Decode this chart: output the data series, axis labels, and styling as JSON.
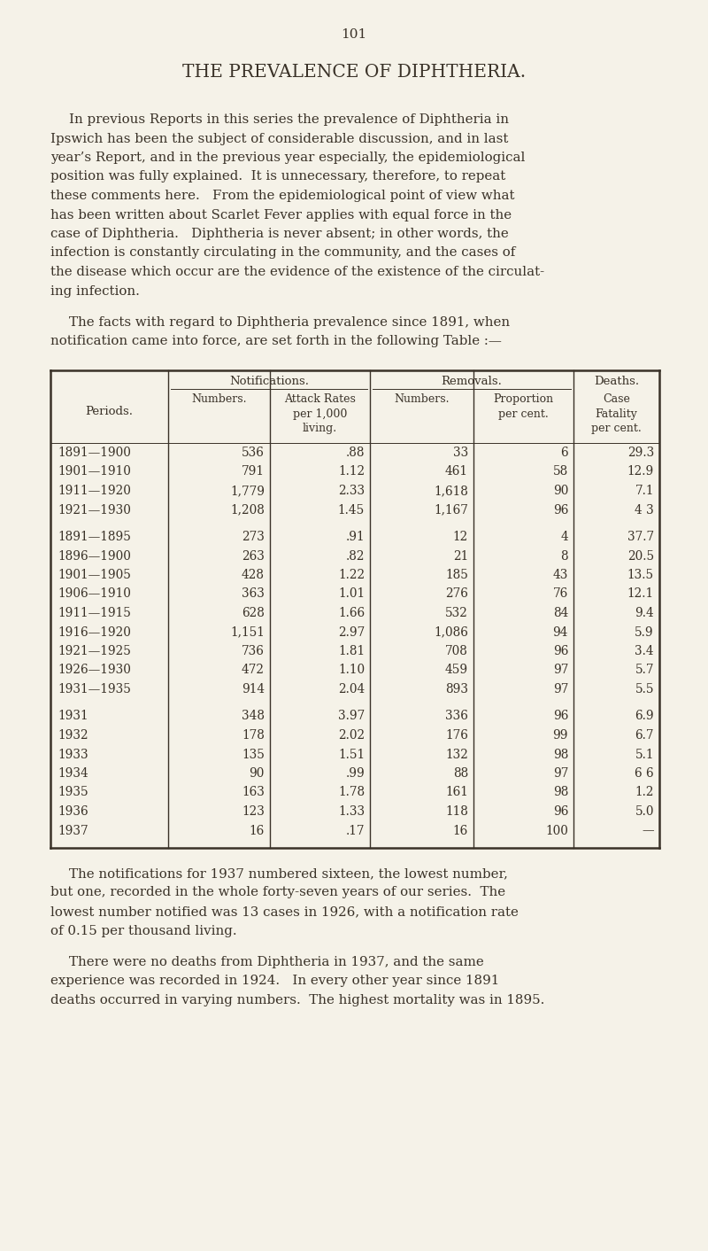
{
  "page_number": "101",
  "title": "THE PREVALENCE OF DIPHTHERIA.",
  "bg_color": "#f5f2e8",
  "text_color": "#3a3228",
  "para1_lines": [
    "In previous Reports in this series the prevalence of Diphtheria in",
    "Ipswich has been the subject of considerable discussion, and in last",
    "year’s Report, and in the previous year especially, the epidemiological",
    "position was fully explained.  It is unnecessary, therefore, to repeat",
    "these comments here.   From the epidemiological point of view what",
    "has been written about Scarlet Fever applies with equal force in the",
    "case of Diphtheria.   Diphtheria is never absent; in other words, the",
    "infection is constantly circulating in the community, and the cases of",
    "the disease which occur are the evidence of the existence of the circulat-",
    "ing infection."
  ],
  "para2_lines": [
    "The facts with regard to Diphtheria prevalence since 1891, when",
    "notification came into force, are set forth in the following Table :—"
  ],
  "para3_lines": [
    "The notifications for 1937 numbered sixteen, the lowest number,",
    "but one, recorded in the whole forty-seven years of our series.  The",
    "lowest number notified was 13 cases in 1926, with a notification rate",
    "of 0.15 per thousand living."
  ],
  "para4_lines": [
    "There were no deaths from Diphtheria in 1937, and the same",
    "experience was recorded in 1924.   In every other year since 1891",
    "deaths occurred in varying numbers.  The highest mortality was in 1895."
  ],
  "table_data": [
    [
      "1891—1900",
      "536",
      ".88",
      "33",
      "6",
      "29.3"
    ],
    [
      "1901—1910",
      "791",
      "1.12",
      "461",
      "58",
      "12.9"
    ],
    [
      "1911—1920",
      "1,779",
      "2.33",
      "1,618",
      "90",
      "7.1"
    ],
    [
      "1921—1930",
      "1,208",
      "1.45",
      "1,167",
      "96",
      "4 3"
    ],
    [
      "GAP",
      "",
      "",
      "",
      "",
      ""
    ],
    [
      "1891—1895",
      "273",
      ".91",
      "12",
      "4",
      "37.7"
    ],
    [
      "1896—1900",
      "263",
      ".82",
      "21",
      "8",
      "20.5"
    ],
    [
      "1901—1905",
      "428",
      "1.22",
      "185",
      "43",
      "13.5"
    ],
    [
      "1906—1910",
      "363",
      "1.01",
      "276",
      "76",
      "12.1"
    ],
    [
      "1911—1915",
      "628",
      "1.66",
      "532",
      "84",
      "9.4"
    ],
    [
      "1916—1920",
      "1,151",
      "2.97",
      "1,086",
      "94",
      "5.9"
    ],
    [
      "1921—1925",
      "736",
      "1.81",
      "708",
      "96",
      "3.4"
    ],
    [
      "1926—1930",
      "472",
      "1.10",
      "459",
      "97",
      "5.7"
    ],
    [
      "1931—1935",
      "914",
      "2.04",
      "893",
      "97",
      "5.5"
    ],
    [
      "GAP",
      "",
      "",
      "",
      "",
      ""
    ],
    [
      "1931",
      "348",
      "3.97",
      "336",
      "96",
      "6.9"
    ],
    [
      "1932",
      "178",
      "2.02",
      "176",
      "99",
      "6.7"
    ],
    [
      "1933",
      "135",
      "1.51",
      "132",
      "98",
      "5.1"
    ],
    [
      "1934",
      "90",
      ".99",
      "88",
      "97",
      "6 6"
    ],
    [
      "1935",
      "163",
      "1.78",
      "161",
      "98",
      "1.2"
    ],
    [
      "1936",
      "123",
      "1.33",
      "118",
      "96",
      "5.0"
    ],
    [
      "1937",
      "16",
      ".17",
      "16",
      "100",
      "—"
    ]
  ]
}
